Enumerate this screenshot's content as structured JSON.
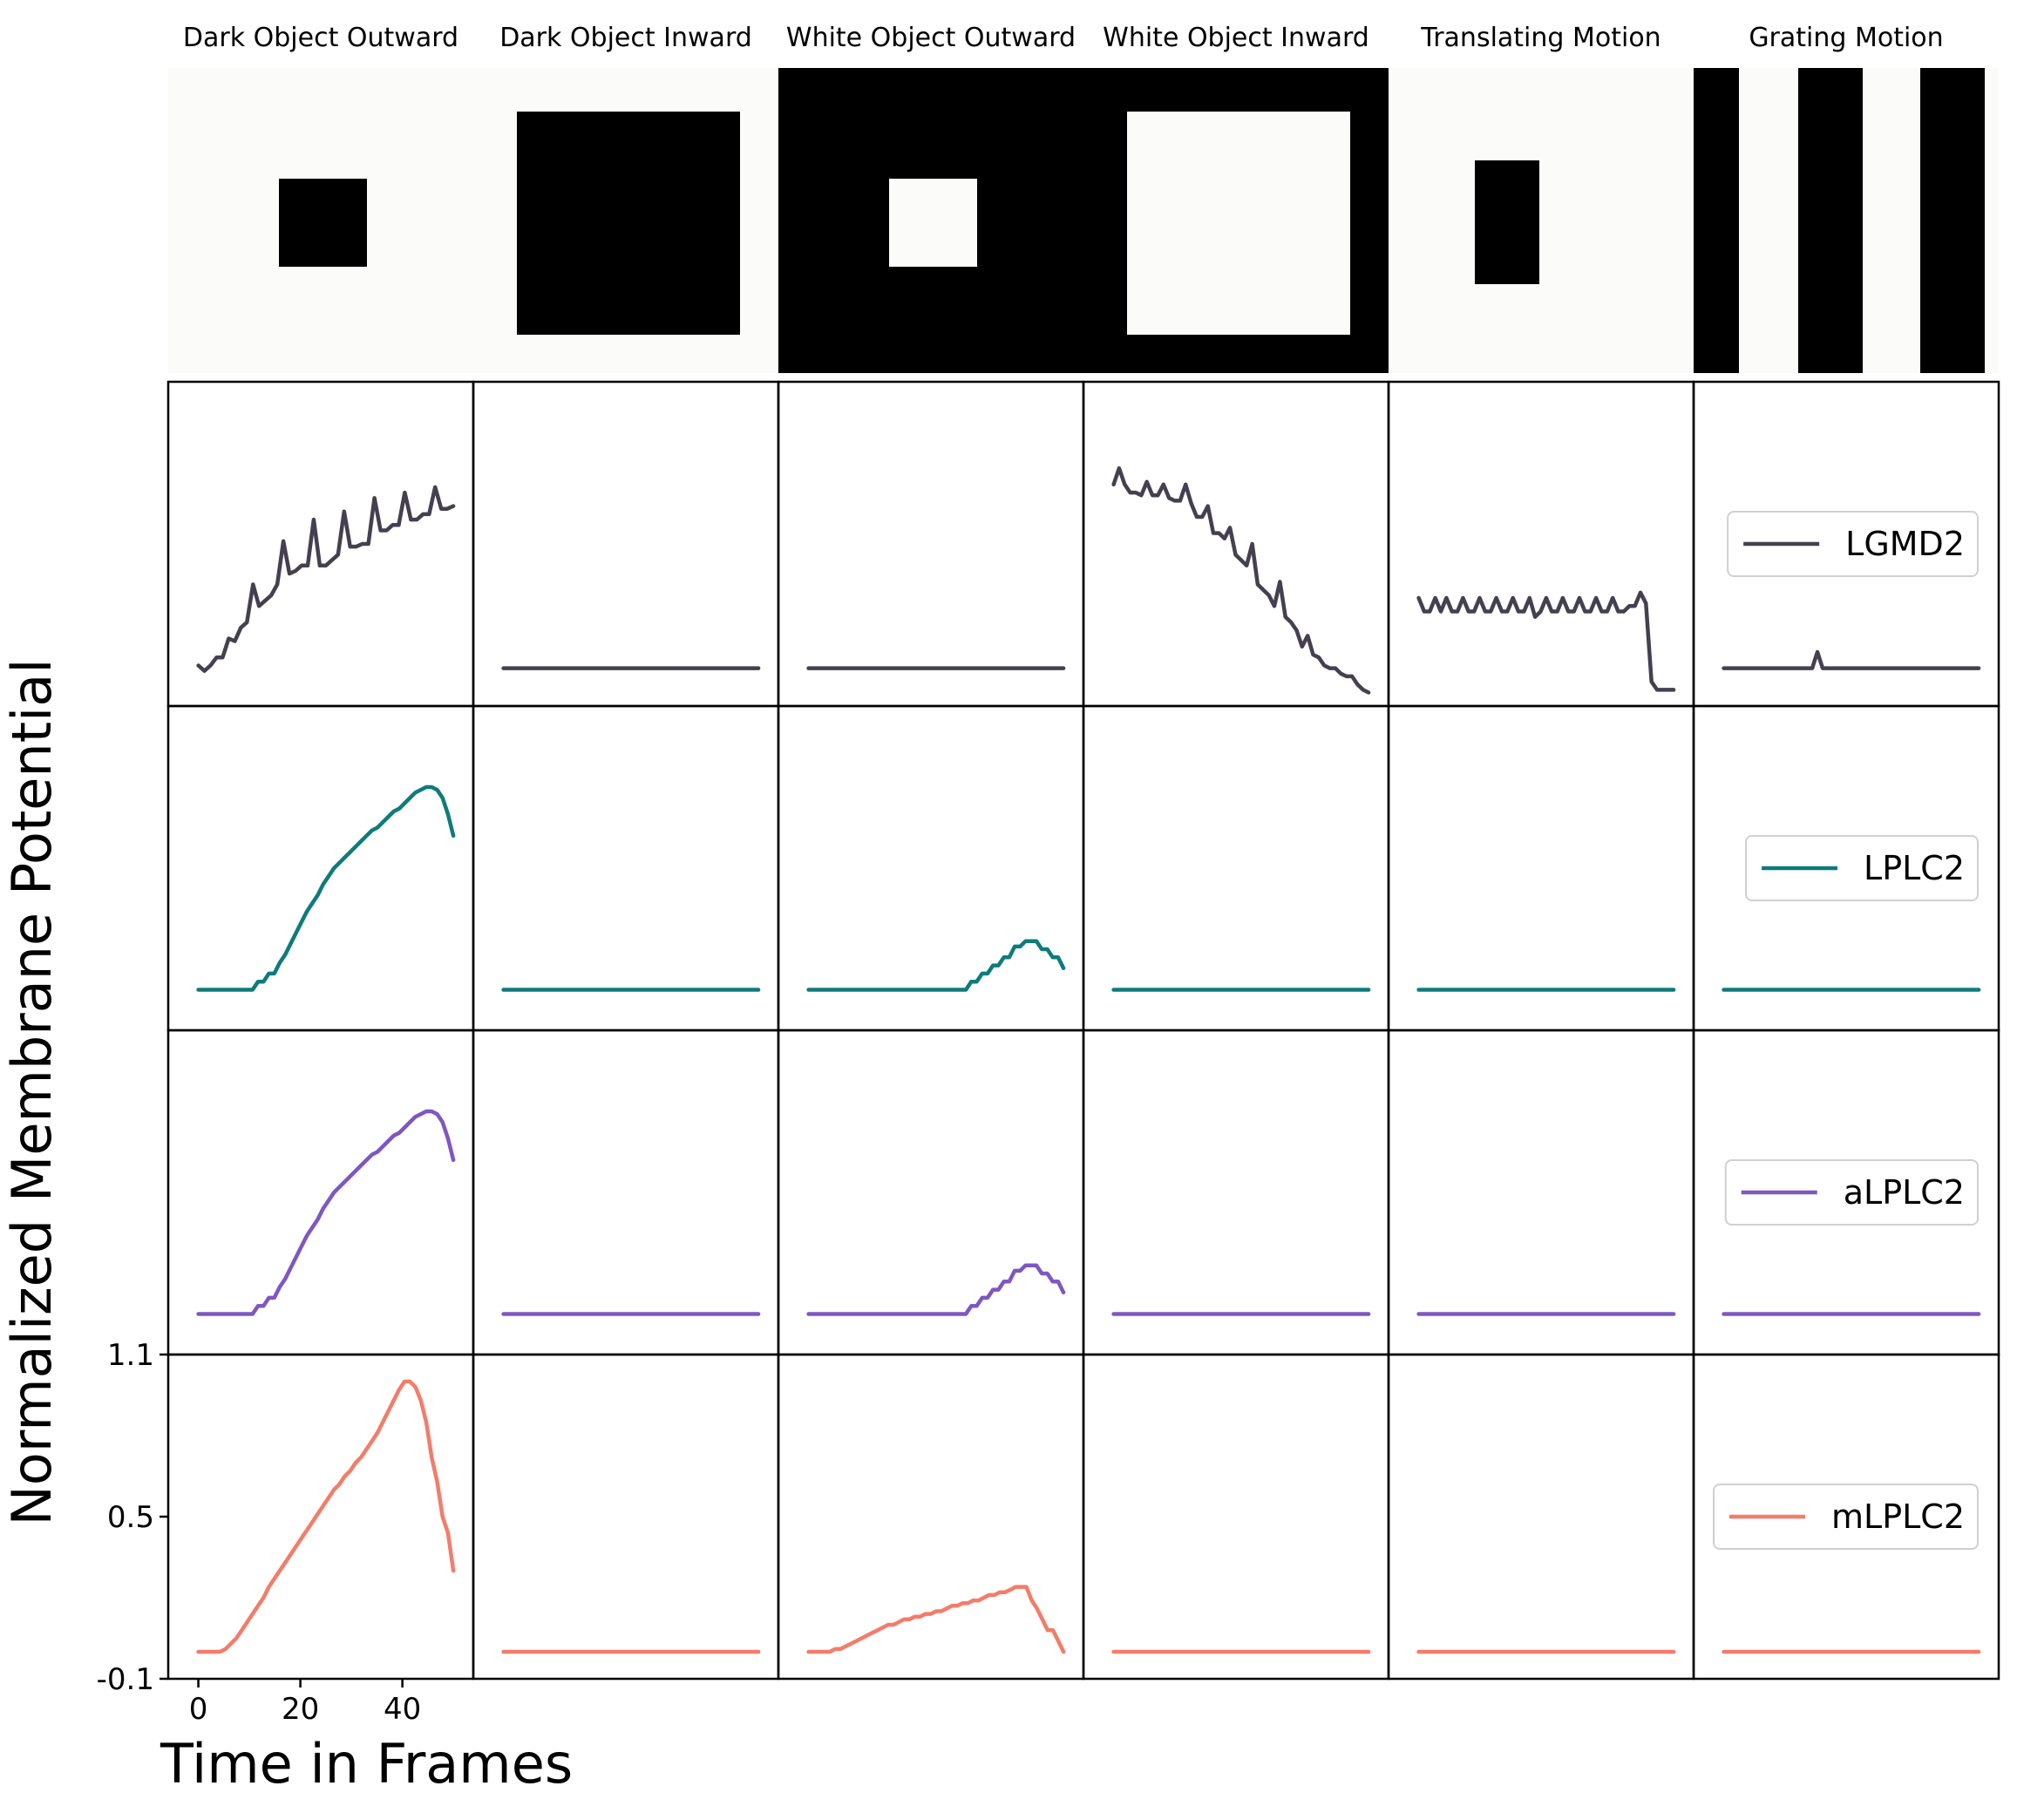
{
  "chart_data": {
    "type": "line",
    "xlabel": "Time in Frames",
    "ylabel": "Normalized Membrane Potential",
    "xlim": [
      -3,
      51
    ],
    "ylim": [
      -0.1,
      1.1
    ],
    "x_ticks": [
      0,
      20,
      40
    ],
    "y_ticks": [
      -0.1,
      0.5,
      1.1
    ],
    "y_tick_labels": [
      "-0.1",
      "0.5",
      "1.1"
    ],
    "legend_location": "center-right",
    "stimuli": [
      {
        "name": "Dark Object Outward",
        "background": "#fbfcf9",
        "foreground": "#000000",
        "shape": "small-square"
      },
      {
        "name": "Dark Object Inward",
        "background": "#fbfcf9",
        "foreground": "#000000",
        "shape": "large-square"
      },
      {
        "name": "White Object Outward",
        "background": "#000000",
        "foreground": "#fbfcf9",
        "shape": "small-square"
      },
      {
        "name": "White Object Inward",
        "background": "#000000",
        "foreground": "#fbfcf9",
        "shape": "large-square"
      },
      {
        "name": "Translating Motion",
        "background": "#fbfcf9",
        "foreground": "#000000",
        "shape": "bar"
      },
      {
        "name": "Grating Motion",
        "background": "#fbfcf9",
        "foreground": "#000000",
        "shape": "grating"
      }
    ],
    "neurons": [
      {
        "name": "LGMD2",
        "color": "#45404f",
        "series": [
          [
            0.05,
            0.03,
            0.05,
            0.08,
            0.08,
            0.15,
            0.14,
            0.19,
            0.21,
            0.35,
            0.27,
            0.29,
            0.31,
            0.35,
            0.51,
            0.39,
            0.4,
            0.42,
            0.42,
            0.59,
            0.42,
            0.42,
            0.44,
            0.46,
            0.62,
            0.49,
            0.49,
            0.5,
            0.5,
            0.67,
            0.55,
            0.55,
            0.57,
            0.57,
            0.69,
            0.59,
            0.59,
            0.61,
            0.61,
            0.71,
            0.63,
            0.63,
            0.64
          ],
          [
            0.04,
            0.04,
            0.04,
            0.04,
            0.04,
            0.04,
            0.04,
            0.04,
            0.04,
            0.04
          ],
          [
            0.04,
            0.04,
            0.04,
            0.04,
            0.04,
            0.04,
            0.04,
            0.04,
            0.04,
            0.04
          ],
          [
            0.72,
            0.78,
            0.72,
            0.69,
            0.69,
            0.68,
            0.73,
            0.68,
            0.68,
            0.72,
            0.67,
            0.66,
            0.66,
            0.72,
            0.65,
            0.6,
            0.6,
            0.64,
            0.54,
            0.54,
            0.52,
            0.56,
            0.46,
            0.44,
            0.42,
            0.5,
            0.35,
            0.33,
            0.31,
            0.27,
            0.36,
            0.23,
            0.21,
            0.18,
            0.12,
            0.16,
            0.09,
            0.08,
            0.05,
            0.04,
            0.04,
            0.02,
            0.01,
            0.01,
            -0.02,
            -0.04,
            -0.05
          ],
          [
            0.3,
            0.25,
            0.25,
            0.3,
            0.25,
            0.3,
            0.25,
            0.25,
            0.3,
            0.25,
            0.25,
            0.3,
            0.25,
            0.25,
            0.3,
            0.25,
            0.25,
            0.3,
            0.25,
            0.25,
            0.3,
            0.23,
            0.25,
            0.3,
            0.25,
            0.25,
            0.3,
            0.25,
            0.25,
            0.3,
            0.25,
            0.25,
            0.3,
            0.25,
            0.25,
            0.3,
            0.25,
            0.25,
            0.27,
            0.27,
            0.32,
            0.28,
            -0.01,
            -0.04,
            -0.04,
            -0.04,
            -0.04
          ],
          [
            0.04,
            0.04,
            0.04,
            0.04,
            0.04,
            0.04,
            0.04,
            0.04,
            0.04,
            0.04,
            0.04,
            0.04,
            0.04,
            0.04,
            0.04,
            0.04,
            0.04,
            0.04,
            0.1,
            0.04,
            0.04,
            0.04,
            0.04,
            0.04,
            0.04,
            0.04,
            0.04,
            0.04,
            0.04,
            0.04,
            0.04,
            0.04,
            0.04,
            0.04,
            0.04,
            0.04,
            0.04,
            0.04,
            0.04,
            0.04,
            0.04,
            0.04,
            0.04,
            0.04,
            0.04,
            0.04,
            0.04,
            0.04,
            0.04,
            0.04
          ]
        ]
      },
      {
        "name": "LPLC2",
        "color": "#0f7b7b",
        "series": [
          [
            0.05,
            0.05,
            0.05,
            0.05,
            0.05,
            0.05,
            0.05,
            0.05,
            0.05,
            0.05,
            0.05,
            0.08,
            0.08,
            0.11,
            0.11,
            0.15,
            0.18,
            0.22,
            0.26,
            0.3,
            0.34,
            0.37,
            0.4,
            0.44,
            0.47,
            0.5,
            0.52,
            0.54,
            0.56,
            0.58,
            0.6,
            0.62,
            0.64,
            0.65,
            0.67,
            0.69,
            0.71,
            0.72,
            0.74,
            0.76,
            0.78,
            0.79,
            0.8,
            0.8,
            0.79,
            0.76,
            0.7,
            0.62
          ],
          [
            0.05,
            0.05,
            0.05,
            0.05,
            0.05,
            0.05,
            0.05,
            0.05,
            0.05,
            0.05
          ],
          [
            0.05,
            0.05,
            0.05,
            0.05,
            0.05,
            0.05,
            0.05,
            0.05,
            0.05,
            0.05,
            0.05,
            0.05,
            0.05,
            0.05,
            0.05,
            0.05,
            0.05,
            0.05,
            0.05,
            0.05,
            0.05,
            0.05,
            0.05,
            0.05,
            0.05,
            0.05,
            0.05,
            0.05,
            0.05,
            0.05,
            0.08,
            0.08,
            0.11,
            0.11,
            0.14,
            0.14,
            0.17,
            0.17,
            0.21,
            0.21,
            0.23,
            0.23,
            0.23,
            0.2,
            0.2,
            0.17,
            0.17,
            0.13
          ],
          [
            0.05,
            0.05,
            0.05,
            0.05,
            0.05,
            0.05,
            0.05,
            0.05,
            0.05,
            0.05
          ],
          [
            0.05,
            0.05,
            0.05,
            0.05,
            0.05,
            0.05,
            0.05,
            0.05,
            0.05,
            0.05
          ],
          [
            0.05,
            0.05,
            0.05,
            0.05,
            0.05,
            0.05,
            0.05,
            0.05,
            0.05,
            0.05
          ]
        ]
      },
      {
        "name": "aLPLC2",
        "color": "#7e57c2",
        "series": [
          [
            0.05,
            0.05,
            0.05,
            0.05,
            0.05,
            0.05,
            0.05,
            0.05,
            0.05,
            0.05,
            0.05,
            0.08,
            0.08,
            0.11,
            0.11,
            0.15,
            0.18,
            0.22,
            0.26,
            0.3,
            0.34,
            0.37,
            0.4,
            0.44,
            0.47,
            0.5,
            0.52,
            0.54,
            0.56,
            0.58,
            0.6,
            0.62,
            0.64,
            0.65,
            0.67,
            0.69,
            0.71,
            0.72,
            0.74,
            0.76,
            0.78,
            0.79,
            0.8,
            0.8,
            0.79,
            0.76,
            0.7,
            0.62
          ],
          [
            0.05,
            0.05,
            0.05,
            0.05,
            0.05,
            0.05,
            0.05,
            0.05,
            0.05,
            0.05
          ],
          [
            0.05,
            0.05,
            0.05,
            0.05,
            0.05,
            0.05,
            0.05,
            0.05,
            0.05,
            0.05,
            0.05,
            0.05,
            0.05,
            0.05,
            0.05,
            0.05,
            0.05,
            0.05,
            0.05,
            0.05,
            0.05,
            0.05,
            0.05,
            0.05,
            0.05,
            0.05,
            0.05,
            0.05,
            0.05,
            0.05,
            0.08,
            0.08,
            0.11,
            0.11,
            0.14,
            0.14,
            0.17,
            0.17,
            0.21,
            0.21,
            0.23,
            0.23,
            0.23,
            0.2,
            0.2,
            0.17,
            0.17,
            0.13
          ],
          [
            0.05,
            0.05,
            0.05,
            0.05,
            0.05,
            0.05,
            0.05,
            0.05,
            0.05,
            0.05
          ],
          [
            0.05,
            0.05,
            0.05,
            0.05,
            0.05,
            0.05,
            0.05,
            0.05,
            0.05,
            0.05
          ],
          [
            0.05,
            0.05,
            0.05,
            0.05,
            0.05,
            0.05,
            0.05,
            0.05,
            0.05,
            0.05
          ]
        ]
      },
      {
        "name": "mLPLC2",
        "color": "#f47c6a",
        "series": [
          [
            0.0,
            0.0,
            0.0,
            0.0,
            0.0,
            0.01,
            0.03,
            0.05,
            0.08,
            0.11,
            0.14,
            0.17,
            0.2,
            0.24,
            0.27,
            0.3,
            0.33,
            0.36,
            0.39,
            0.42,
            0.45,
            0.48,
            0.51,
            0.54,
            0.57,
            0.6,
            0.62,
            0.65,
            0.67,
            0.7,
            0.72,
            0.75,
            0.78,
            0.81,
            0.85,
            0.89,
            0.93,
            0.97,
            1.0,
            1.0,
            0.98,
            0.93,
            0.85,
            0.72,
            0.63,
            0.5,
            0.44,
            0.3
          ],
          [
            0.0,
            0.0,
            0.0,
            0.0,
            0.0,
            0.0,
            0.0,
            0.0,
            0.0,
            0.0
          ],
          [
            0.0,
            0.0,
            0.0,
            0.0,
            0.0,
            0.01,
            0.01,
            0.02,
            0.03,
            0.04,
            0.05,
            0.06,
            0.07,
            0.08,
            0.09,
            0.1,
            0.1,
            0.11,
            0.12,
            0.12,
            0.13,
            0.13,
            0.14,
            0.14,
            0.15,
            0.15,
            0.16,
            0.17,
            0.17,
            0.18,
            0.18,
            0.19,
            0.19,
            0.2,
            0.21,
            0.21,
            0.22,
            0.22,
            0.23,
            0.24,
            0.24,
            0.24,
            0.19,
            0.16,
            0.12,
            0.08,
            0.08,
            0.04,
            0.0
          ],
          [
            0.0,
            0.0,
            0.0,
            0.0,
            0.0,
            0.0,
            0.0,
            0.0,
            0.0,
            0.0
          ],
          [
            0.0,
            0.0,
            0.0,
            0.0,
            0.0,
            0.0,
            0.0,
            0.0,
            0.0,
            0.0
          ],
          [
            0.0,
            0.0,
            0.0,
            0.0,
            0.0,
            0.0,
            0.0,
            0.0,
            0.0,
            0.0
          ]
        ]
      }
    ]
  }
}
